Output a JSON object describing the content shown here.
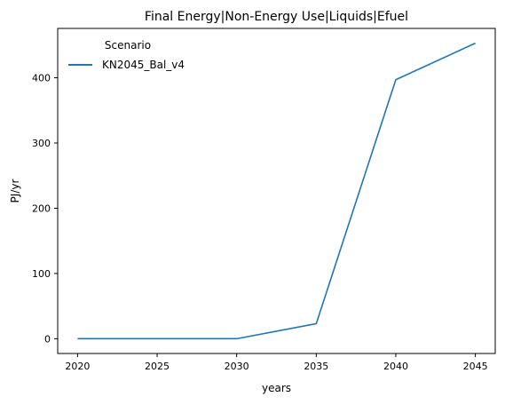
{
  "chart_data": {
    "type": "line",
    "title": "Final Energy|Non-Energy Use|Liquids|Efuel",
    "xlabel": "years",
    "ylabel": "PJ/yr",
    "x": [
      2020,
      2025,
      2030,
      2035,
      2040,
      2045
    ],
    "series": [
      {
        "name": "KN2045_Bal_v4",
        "color": "#1f77b4",
        "values": [
          0,
          0,
          0,
          23,
          397,
          453
        ]
      }
    ],
    "xticks": [
      "2020",
      "2025",
      "2030",
      "2035",
      "2040",
      "2045"
    ],
    "yticks": [
      "0",
      "100",
      "200",
      "300",
      "400"
    ],
    "xlim": [
      2018.75,
      2046.25
    ],
    "ylim": [
      -22.65,
      475.65
    ],
    "legend": {
      "title": "Scenario",
      "placement": "upper left"
    },
    "grid": false
  }
}
